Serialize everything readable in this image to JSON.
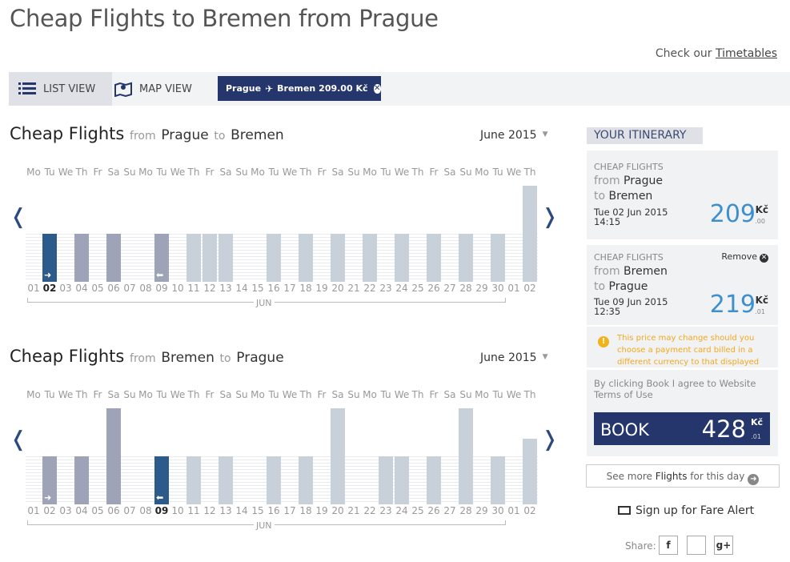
{
  "title": "Cheap Flights to Bremen from Prague",
  "check": {
    "prefix": "Check our ",
    "link": "Timetables"
  },
  "toolbar": {
    "list_view": "LIST VIEW",
    "map_view": "MAP VIEW"
  },
  "route_chip": {
    "from": "Prague",
    "to": "Bremen",
    "price": "209.00 Kč"
  },
  "dow": [
    "Mo",
    "Tu",
    "We",
    "Th",
    "Fr",
    "Sa",
    "Su",
    "Mo",
    "Tu",
    "We",
    "Th",
    "Fr",
    "Sa",
    "Su",
    "Mo",
    "Tu",
    "We",
    "Th",
    "Fr",
    "Sa",
    "Su",
    "Mo",
    "Tu",
    "We",
    "Th",
    "Fr",
    "Sa",
    "Su",
    "Mo",
    "Tu",
    "We",
    "Th"
  ],
  "day_numbers": [
    "01",
    "02",
    "03",
    "04",
    "05",
    "06",
    "07",
    "08",
    "09",
    "10",
    "11",
    "12",
    "13",
    "14",
    "15",
    "16",
    "17",
    "18",
    "19",
    "20",
    "21",
    "22",
    "23",
    "24",
    "25",
    "26",
    "27",
    "28",
    "29",
    "30",
    "01",
    "02"
  ],
  "month_tick": "JUN",
  "outbound": {
    "cheap": "Cheap Flights",
    "from_word": "from",
    "from_city": "Prague",
    "to_word": "to",
    "to_city": "Bremen",
    "month": "June 2015",
    "price_levels": [
      0,
      2,
      0,
      2,
      0,
      2,
      0,
      0,
      2,
      0,
      1,
      1,
      1,
      0,
      0,
      1,
      0,
      1,
      0,
      1,
      0,
      1,
      0,
      1,
      0,
      1,
      0,
      1,
      0,
      1,
      0,
      3
    ],
    "selected_index": 1,
    "bar_kind": [
      "",
      "sel",
      "",
      "mid",
      "",
      "mid",
      "",
      "",
      "mid",
      "",
      "light",
      "light",
      "light",
      "",
      "",
      "light",
      "",
      "light",
      "",
      "light",
      "",
      "light",
      "",
      "light",
      "",
      "light",
      "",
      "light",
      "",
      "light",
      "",
      "light"
    ]
  },
  "inbound": {
    "cheap": "Cheap Flights",
    "from_word": "from",
    "from_city": "Bremen",
    "to_word": "to",
    "to_city": "Prague",
    "month": "June 2015",
    "price_levels": [
      0,
      2,
      0,
      2,
      0,
      5,
      0,
      0,
      2,
      0,
      2,
      0,
      2,
      0,
      0,
      2,
      0,
      2,
      0,
      5,
      0,
      0,
      2,
      2,
      0,
      2,
      0,
      5,
      0,
      2,
      0,
      3
    ],
    "selected_index": 8,
    "bar_kind": [
      "",
      "mid",
      "",
      "mid",
      "",
      "mid",
      "",
      "",
      "sel",
      "",
      "light",
      "",
      "light",
      "",
      "",
      "light",
      "",
      "light",
      "",
      "light",
      "",
      "",
      "light",
      "light",
      "",
      "light",
      "",
      "light",
      "",
      "light",
      "",
      "light"
    ]
  },
  "itinerary": {
    "header": "YOUR ITINERARY",
    "legs": [
      {
        "label": "CHEAP FLIGHTS",
        "from_word": "from",
        "from": "Prague",
        "to_word": "to",
        "to": "Bremen",
        "date": "Tue 02 Jun 2015",
        "time": "14:15",
        "price": "209",
        "currency": "Kč",
        "decimals": ".00"
      },
      {
        "label": "CHEAP FLIGHTS",
        "from_word": "from",
        "from": "Bremen",
        "to_word": "to",
        "to": "Prague",
        "date": "Tue 09 Jun 2015",
        "time": "12:35",
        "price": "219",
        "currency": "Kč",
        "decimals": ".01",
        "remove": "Remove"
      }
    ],
    "warning": "This price may change should you choose a payment card billed in a different currency to that displayed",
    "terms": "By clicking Book I agree to Website Terms of Use",
    "book": {
      "label": "BOOK",
      "price": "428",
      "currency": "Kč",
      "decimals": ".01"
    },
    "see_more": {
      "prefix": "See more ",
      "bold": "Flights",
      "suffix": " for this day"
    },
    "fare_alert": "Sign up for Fare Alert",
    "share": "Share:"
  }
}
